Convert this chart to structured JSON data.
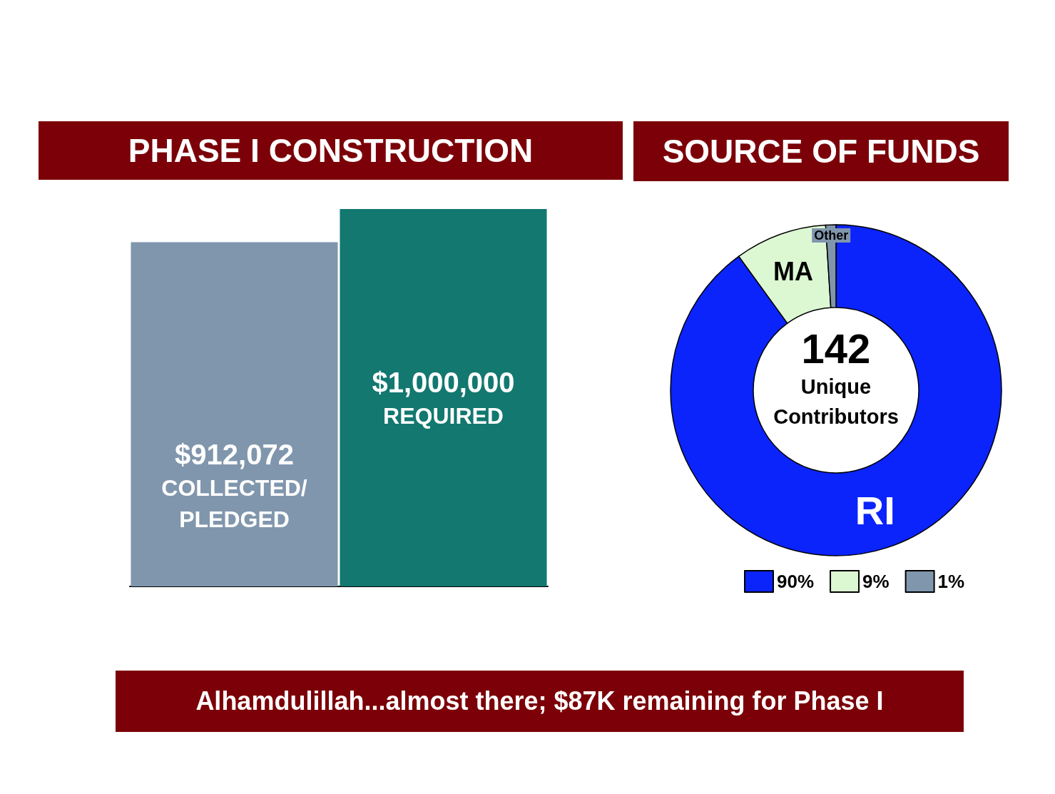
{
  "chart_data": [
    {
      "type": "bar",
      "title": "PHASE I CONSTRUCTION",
      "categories": [
        "COLLECTED/ PLEDGED",
        "REQUIRED"
      ],
      "values": [
        912072,
        1000000
      ],
      "colors": [
        "#8096ad",
        "#127870"
      ],
      "value_labels": [
        "$912,072",
        "$1,000,000"
      ],
      "annotations": [
        "Alhamdulillah...almost there; $87K remaining for Phase I"
      ]
    },
    {
      "type": "donut",
      "title": "SOURCE OF FUNDS",
      "categories": [
        "90%",
        "9%",
        "1%"
      ],
      "values": [
        90,
        9,
        1
      ],
      "colors": [
        "#0b24fb",
        "#dcf8d3",
        "#8096ad"
      ],
      "value_labels": [
        "RI",
        "MA",
        "Other"
      ],
      "legend": "bottom",
      "annotations": [
        "142",
        "Unique Contributors"
      ]
    }
  ]
}
